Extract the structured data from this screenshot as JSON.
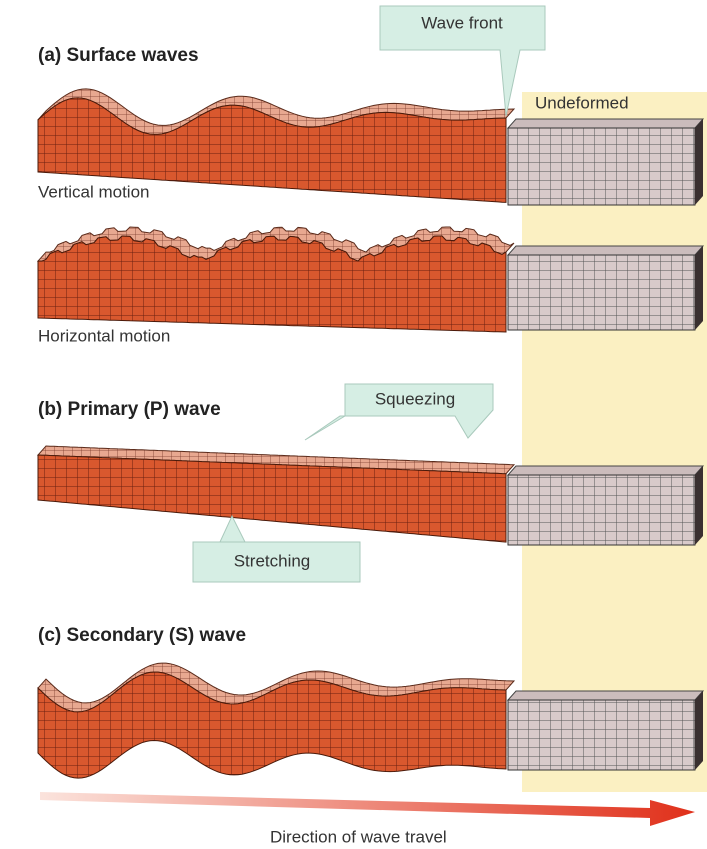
{
  "wave_front": "Wave front",
  "undeformed": "Undeformed",
  "sections": [
    {
      "title": "(a) Surface waves",
      "panels": [
        "Vertical motion",
        "Horizontal motion"
      ]
    },
    {
      "title": "(b) Primary (P) wave",
      "callouts": [
        "Squeezing",
        "Stretching"
      ]
    },
    {
      "title": "(c) Secondary (S) wave"
    }
  ],
  "direction": "Direction of wave travel"
}
